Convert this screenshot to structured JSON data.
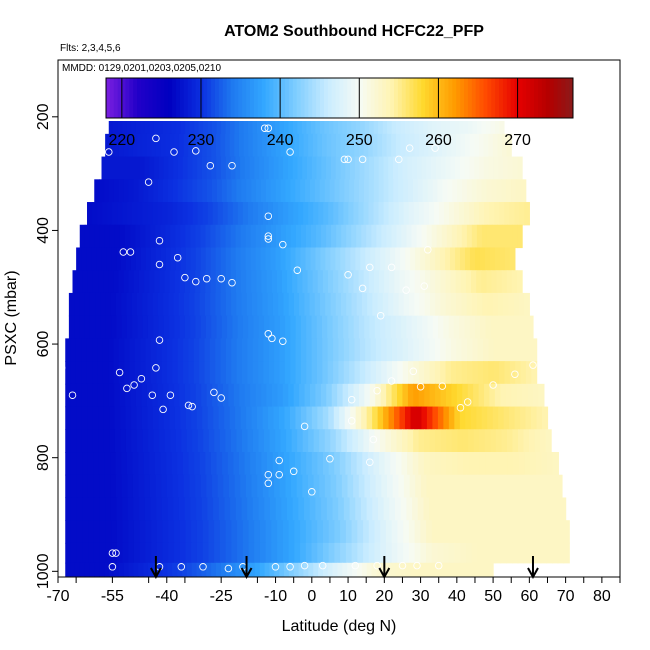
{
  "chart_data": {
    "type": "heatmap",
    "title": "ATOM2 Southbound HCFC22_PFP",
    "flights_label": "Flts: 2,3,4,5,6",
    "mmdd_label": "MMDD: 0129,0201,0203,0205,0210",
    "xlabel": "Latitude (deg N)",
    "ylabel": "PSXC (mbar)",
    "xlim": [
      -70,
      85
    ],
    "ylim": [
      1010,
      100
    ],
    "x_ticks": [
      -70,
      -55,
      -40,
      -25,
      -10,
      0,
      10,
      20,
      30,
      40,
      50,
      60,
      70,
      80
    ],
    "y_ticks": [
      200,
      400,
      600,
      800,
      1000
    ],
    "colorbar": {
      "range": [
        218,
        277
      ],
      "ticks": [
        220,
        230,
        240,
        250,
        260,
        270
      ],
      "stops": [
        {
          "v": 218,
          "c": "#7b1fe0"
        },
        {
          "v": 222,
          "c": "#2200c8"
        },
        {
          "v": 226,
          "c": "#0000c0"
        },
        {
          "v": 230,
          "c": "#0b2fe0"
        },
        {
          "v": 234,
          "c": "#1f7af0"
        },
        {
          "v": 238,
          "c": "#33a8ff"
        },
        {
          "v": 242,
          "c": "#7fcdff"
        },
        {
          "v": 246,
          "c": "#c9ecff"
        },
        {
          "v": 250,
          "c": "#f6fbf5"
        },
        {
          "v": 254,
          "c": "#fff4b3"
        },
        {
          "v": 258,
          "c": "#ffd92e"
        },
        {
          "v": 262,
          "c": "#ff9c00"
        },
        {
          "v": 266,
          "c": "#ff4a00"
        },
        {
          "v": 270,
          "c": "#e60000"
        },
        {
          "v": 274,
          "c": "#b30000"
        },
        {
          "v": 277,
          "c": "#8b1a1a"
        }
      ]
    },
    "grid_rows": [
      {
        "p": 210,
        "lat_min": -56,
        "lat_max": 53,
        "v": [
          228,
          229,
          230,
          232,
          235,
          238,
          241,
          243,
          246,
          248,
          249,
          251
        ]
      },
      {
        "p": 250,
        "lat_min": -57,
        "lat_max": 55,
        "v": [
          228,
          229,
          230,
          232,
          235,
          238,
          241,
          243,
          246,
          248,
          250,
          252
        ]
      },
      {
        "p": 290,
        "lat_min": -58,
        "lat_max": 58,
        "v": [
          228,
          228,
          230,
          232,
          235,
          238,
          241,
          244,
          247,
          249,
          251,
          252
        ]
      },
      {
        "p": 330,
        "lat_min": -60,
        "lat_max": 59,
        "v": [
          227,
          228,
          230,
          232,
          235,
          238,
          241,
          244,
          247,
          250,
          252,
          253
        ]
      },
      {
        "p": 370,
        "lat_min": -62,
        "lat_max": 60,
        "v": [
          227,
          228,
          229,
          231,
          234,
          237,
          240,
          244,
          248,
          251,
          254,
          255
        ]
      },
      {
        "p": 410,
        "lat_min": -64,
        "lat_max": 58,
        "v": [
          227,
          227,
          229,
          231,
          234,
          237,
          240,
          244,
          248,
          252,
          256,
          256
        ]
      },
      {
        "p": 450,
        "lat_min": -65,
        "lat_max": 56,
        "v": [
          227,
          227,
          229,
          231,
          234,
          237,
          241,
          245,
          249,
          253,
          257,
          256
        ]
      },
      {
        "p": 490,
        "lat_min": -66,
        "lat_max": 58,
        "v": [
          227,
          227,
          229,
          231,
          234,
          237,
          241,
          245,
          249,
          252,
          255,
          254
        ]
      },
      {
        "p": 530,
        "lat_min": -67,
        "lat_max": 60,
        "v": [
          227,
          227,
          229,
          231,
          234,
          237,
          241,
          245,
          249,
          252,
          254,
          253
        ]
      },
      {
        "p": 570,
        "lat_min": -67,
        "lat_max": 61,
        "v": [
          227,
          227,
          229,
          231,
          234,
          237,
          241,
          245,
          248,
          251,
          253,
          253
        ]
      },
      {
        "p": 610,
        "lat_min": -68,
        "lat_max": 62,
        "v": [
          227,
          227,
          229,
          231,
          234,
          237,
          241,
          245,
          248,
          251,
          253,
          253
        ]
      },
      {
        "p": 650,
        "lat_min": -68,
        "lat_max": 62,
        "v": [
          227,
          227,
          229,
          231,
          234,
          237,
          241,
          246,
          251,
          255,
          256,
          254
        ]
      },
      {
        "p": 690,
        "lat_min": -68,
        "lat_max": 64,
        "v": [
          227,
          227,
          229,
          231,
          234,
          237,
          242,
          250,
          262,
          258,
          254,
          253
        ]
      },
      {
        "p": 730,
        "lat_min": -68,
        "lat_max": 65,
        "v": [
          227,
          227,
          229,
          231,
          234,
          238,
          244,
          256,
          272,
          258,
          256,
          254
        ]
      },
      {
        "p": 770,
        "lat_min": -68,
        "lat_max": 66,
        "v": [
          227,
          227,
          229,
          231,
          234,
          238,
          243,
          250,
          255,
          256,
          255,
          253
        ]
      },
      {
        "p": 810,
        "lat_min": -68,
        "lat_max": 68,
        "v": [
          227,
          227,
          229,
          231,
          234,
          238,
          242,
          248,
          253,
          254,
          254,
          253
        ]
      },
      {
        "p": 850,
        "lat_min": -68,
        "lat_max": 69,
        "v": [
          227,
          227,
          229,
          231,
          234,
          238,
          242,
          248,
          253,
          253,
          253,
          253
        ]
      },
      {
        "p": 890,
        "lat_min": -68,
        "lat_max": 70,
        "v": [
          227,
          227,
          229,
          231,
          234,
          238,
          242,
          248,
          253,
          253,
          253,
          253
        ]
      },
      {
        "p": 930,
        "lat_min": -68,
        "lat_max": 71,
        "v": [
          227,
          227,
          229,
          231,
          234,
          238,
          242,
          248,
          253,
          253,
          253,
          253
        ]
      },
      {
        "p": 970,
        "lat_min": -68,
        "lat_max": 71,
        "v": [
          227,
          227,
          229,
          231,
          234,
          238,
          243,
          248,
          252,
          253,
          253,
          253
        ]
      },
      {
        "p": 1000,
        "lat_min": -68,
        "lat_max": 50,
        "v": [
          227,
          227,
          229,
          231,
          234,
          238,
          243,
          248,
          252,
          253,
          253,
          253
        ]
      }
    ],
    "sample_points": [
      [
        -43,
        238
      ],
      [
        -38,
        262
      ],
      [
        -32,
        260
      ],
      [
        -28,
        286
      ],
      [
        -22,
        286
      ],
      [
        -56,
        262
      ],
      [
        -45,
        315
      ],
      [
        -12,
        220
      ],
      [
        -13,
        220
      ],
      [
        -6,
        262
      ],
      [
        9,
        275
      ],
      [
        10,
        275
      ],
      [
        14,
        275
      ],
      [
        24,
        275
      ],
      [
        27,
        255
      ],
      [
        34,
        255
      ],
      [
        -42,
        418
      ],
      [
        -37,
        448
      ],
      [
        -42,
        460
      ],
      [
        -50,
        438
      ],
      [
        -52,
        438
      ],
      [
        -35,
        483
      ],
      [
        -32,
        490
      ],
      [
        -29,
        485
      ],
      [
        -25,
        485
      ],
      [
        -22,
        492
      ],
      [
        -12,
        375
      ],
      [
        -12,
        410
      ],
      [
        -12,
        415
      ],
      [
        -8,
        425
      ],
      [
        -4,
        470
      ],
      [
        -69,
        462
      ],
      [
        10,
        478
      ],
      [
        16,
        465
      ],
      [
        14,
        502
      ],
      [
        22,
        465
      ],
      [
        26,
        505
      ],
      [
        31,
        498
      ],
      [
        32,
        434
      ],
      [
        19,
        550
      ],
      [
        -11,
        590
      ],
      [
        -12,
        582
      ],
      [
        -8,
        595
      ],
      [
        -42,
        593
      ],
      [
        -69,
        642
      ],
      [
        -53,
        650
      ],
      [
        -51,
        678
      ],
      [
        -49,
        672
      ],
      [
        -47,
        661
      ],
      [
        -43,
        642
      ],
      [
        -39,
        690
      ],
      [
        -44,
        690
      ],
      [
        -41,
        715
      ],
      [
        -34,
        708
      ],
      [
        -33,
        710
      ],
      [
        -27,
        685
      ],
      [
        -25,
        695
      ],
      [
        -54,
        968
      ],
      [
        -55,
        992
      ],
      [
        -42,
        992
      ],
      [
        -36,
        992
      ],
      [
        -30,
        992
      ],
      [
        -23,
        995
      ],
      [
        -19,
        992
      ],
      [
        -10,
        992
      ],
      [
        -6,
        992
      ],
      [
        -2,
        990
      ],
      [
        3,
        990
      ],
      [
        -2,
        745
      ],
      [
        -9,
        805
      ],
      [
        -9,
        830
      ],
      [
        -12,
        845
      ],
      [
        -12,
        830
      ],
      [
        -5,
        824
      ],
      [
        0,
        860
      ],
      [
        5,
        802
      ],
      [
        11,
        698
      ],
      [
        11,
        735
      ],
      [
        16,
        808
      ],
      [
        17,
        768
      ],
      [
        18,
        682
      ],
      [
        22,
        665
      ],
      [
        28,
        648
      ],
      [
        30,
        675
      ],
      [
        36,
        674
      ],
      [
        41,
        712
      ],
      [
        43,
        702
      ],
      [
        50,
        672
      ],
      [
        56,
        653
      ],
      [
        61,
        637
      ],
      [
        64,
        630
      ],
      [
        12,
        990
      ],
      [
        18,
        990
      ],
      [
        25,
        990
      ],
      [
        29,
        990
      ],
      [
        35,
        990
      ],
      [
        -55,
        968
      ],
      [
        -66,
        690
      ]
    ],
    "arrows_lat": [
      -43,
      -18,
      20,
      61
    ]
  }
}
